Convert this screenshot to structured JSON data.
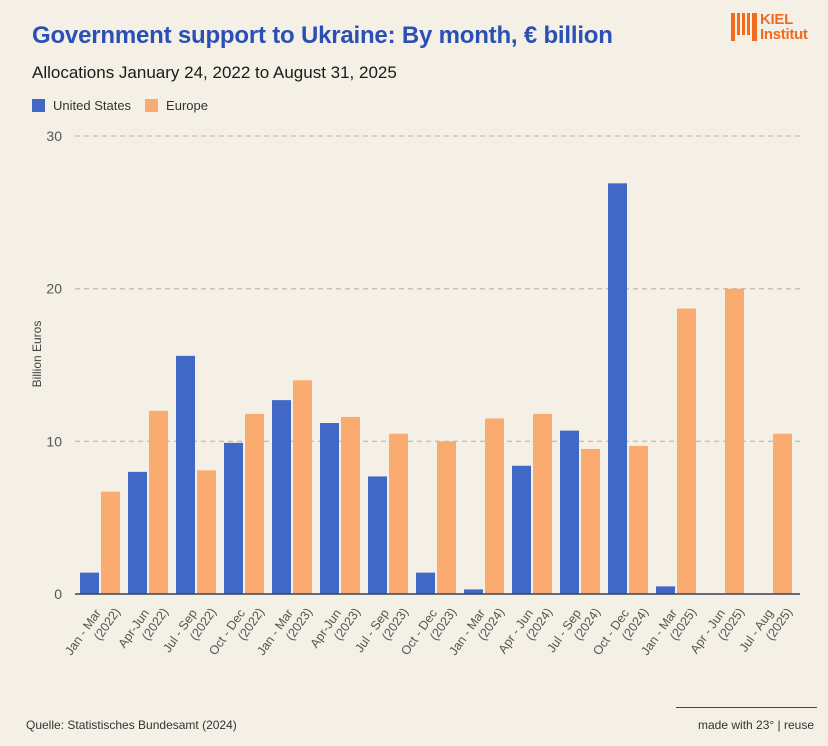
{
  "header": {
    "title": "Government support to Ukraine: By month, € billion",
    "subtitle": "Allocations January 24, 2022 to August 31, 2025",
    "logo": {
      "line1": "KIEL",
      "line2": "Institut",
      "color": "#f26b1d"
    }
  },
  "footer": {
    "source": "Quelle: Statistisches Bundesamt (2024)",
    "credit": "made with 23° | reuse"
  },
  "chart_data": {
    "type": "bar",
    "title": "Government support to Ukraine: By month, € billion",
    "subtitle": "Allocations January 24, 2022 to August 31, 2025",
    "xlabel": "",
    "ylabel": "Billion Euros",
    "ylim": [
      0,
      30
    ],
    "yticks": [
      0,
      10,
      20,
      30
    ],
    "grid": true,
    "legend_position": "top-left",
    "categories": [
      [
        "Jan - Mar",
        "(2022)"
      ],
      [
        "Apr-Jun",
        "(2022)"
      ],
      [
        "Jul - Sep",
        "(2022)"
      ],
      [
        "Oct - Dec",
        "(2022)"
      ],
      [
        "Jan - Mar",
        "(2023)"
      ],
      [
        "Apr-Jun",
        "(2023)"
      ],
      [
        "Jul - Sep",
        "(2023)"
      ],
      [
        "Oct - Dec",
        "(2023)"
      ],
      [
        "Jan - Mar",
        "(2024)"
      ],
      [
        "Apr - Jun",
        "(2024)"
      ],
      [
        "Jul - Sep",
        "(2024)"
      ],
      [
        "Oct - Dec",
        "(2024)"
      ],
      [
        "Jan - Mar",
        "(2025)"
      ],
      [
        "Apr - Jun",
        "(2025)"
      ],
      [
        "Jul - Aug",
        "(2025)"
      ]
    ],
    "series": [
      {
        "name": "United States",
        "color": "#4068c4",
        "values": [
          1.4,
          8.0,
          15.6,
          9.9,
          12.7,
          11.2,
          7.7,
          1.4,
          0.3,
          8.4,
          10.7,
          26.9,
          0.5,
          0,
          0
        ]
      },
      {
        "name": "Europe",
        "color": "#f9ab70",
        "values": [
          6.7,
          12.0,
          8.1,
          11.8,
          14.0,
          11.6,
          10.5,
          10.0,
          11.5,
          11.8,
          9.5,
          9.7,
          18.7,
          20.0,
          10.5
        ]
      }
    ]
  }
}
